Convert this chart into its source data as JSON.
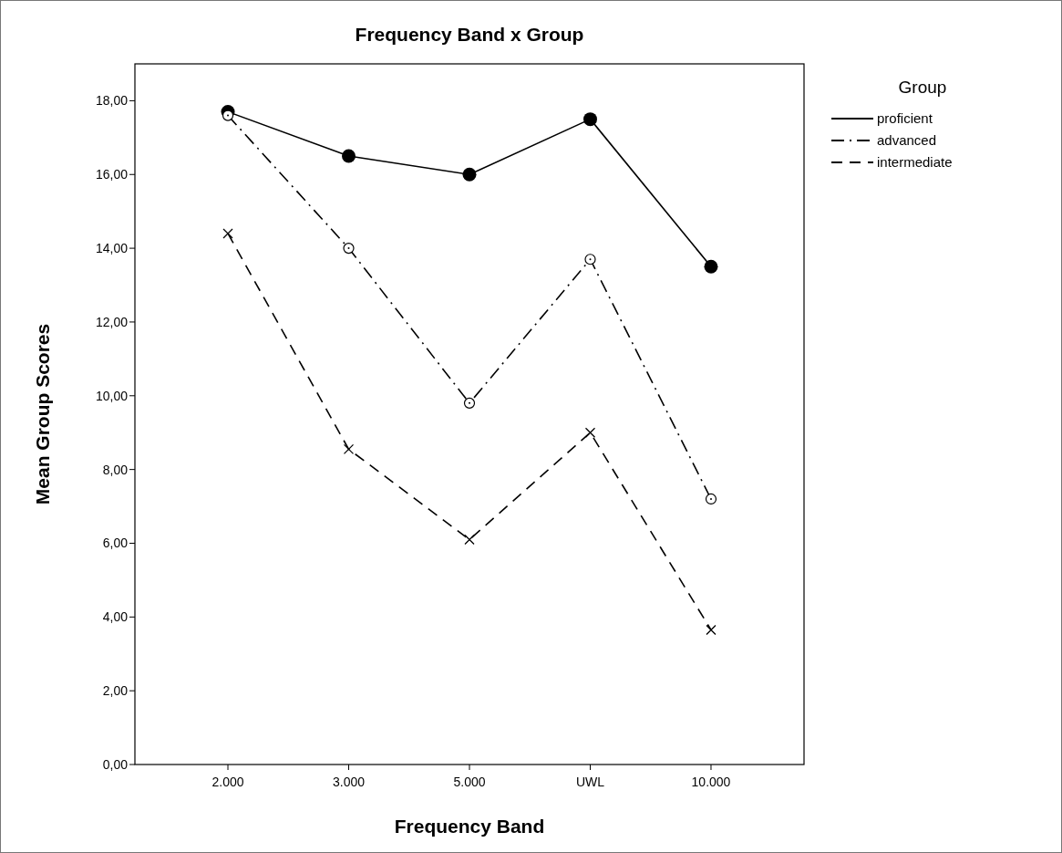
{
  "chart_data": {
    "type": "line",
    "title": "Frequency Band x Group",
    "xlabel": "Frequency Band",
    "ylabel": "Mean Group Scores",
    "legend_title": "Group",
    "legend": "top right",
    "grid": false,
    "categories": [
      "2.000",
      "3.000",
      "5.000",
      "UWL",
      "10.000"
    ],
    "ylim": [
      0,
      19
    ],
    "yticks": [
      {
        "value": 0,
        "label": "0,00"
      },
      {
        "value": 2,
        "label": "2,00"
      },
      {
        "value": 4,
        "label": "4,00"
      },
      {
        "value": 6,
        "label": "6,00"
      },
      {
        "value": 8,
        "label": "8,00"
      },
      {
        "value": 10,
        "label": "10,00"
      },
      {
        "value": 12,
        "label": "12,00"
      },
      {
        "value": 14,
        "label": "14,00"
      },
      {
        "value": 16,
        "label": "16,00"
      },
      {
        "value": 18,
        "label": "18,00"
      }
    ],
    "series": [
      {
        "name": "proficient",
        "color": "#000000",
        "line_style": "solid",
        "marker": "circle",
        "values": [
          17.7,
          16.5,
          16.0,
          17.5,
          13.5
        ]
      },
      {
        "name": "advanced",
        "color": "#000000",
        "line_style": "dashdot",
        "marker": "circle-open",
        "values": [
          17.6,
          14.0,
          9.8,
          13.7,
          7.2
        ]
      },
      {
        "name": "intermediate",
        "color": "#000000",
        "line_style": "dashed",
        "marker": "cross",
        "values": [
          14.4,
          8.55,
          6.1,
          9.0,
          3.65
        ]
      }
    ]
  }
}
